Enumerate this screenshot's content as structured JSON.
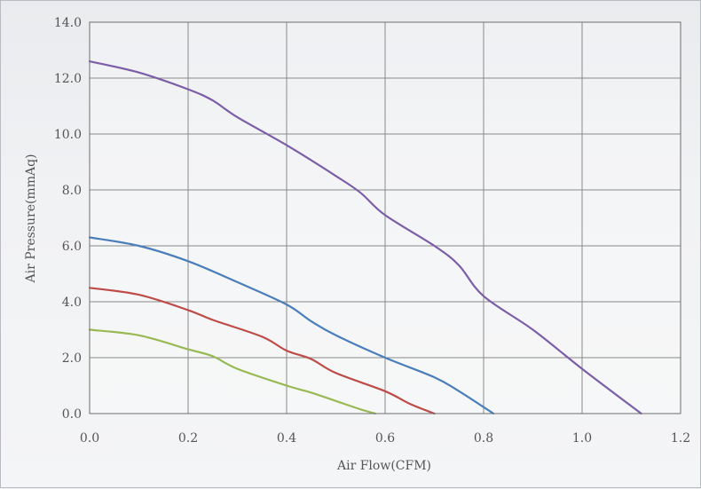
{
  "chart_data": {
    "type": "line",
    "title": "",
    "xlabel": "Air Flow(CFM)",
    "ylabel": "Air Pressure(mmAq)",
    "xlim": [
      0.0,
      1.2
    ],
    "ylim": [
      0.0,
      14.0
    ],
    "x_ticks": [
      "0.0",
      "0.2",
      "0.4",
      "0.6",
      "0.8",
      "1.0",
      "1.2"
    ],
    "y_ticks": [
      "0.0",
      "2.0",
      "4.0",
      "6.0",
      "8.0",
      "10.0",
      "12.0",
      "14.0"
    ],
    "grid": true,
    "legend": "none",
    "series": [
      {
        "color": "#7b5ea7",
        "points": [
          [
            0.0,
            12.6
          ],
          [
            0.1,
            12.2
          ],
          [
            0.2,
            11.6
          ],
          [
            0.25,
            11.2
          ],
          [
            0.3,
            10.6
          ],
          [
            0.4,
            9.6
          ],
          [
            0.5,
            8.5
          ],
          [
            0.55,
            7.9
          ],
          [
            0.6,
            7.1
          ],
          [
            0.7,
            6.0
          ],
          [
            0.75,
            5.3
          ],
          [
            0.8,
            4.2
          ],
          [
            0.9,
            3.0
          ],
          [
            1.0,
            1.6
          ],
          [
            1.12,
            0.0
          ]
        ]
      },
      {
        "color": "#4a7ebb",
        "points": [
          [
            0.0,
            6.3
          ],
          [
            0.1,
            6.0
          ],
          [
            0.2,
            5.45
          ],
          [
            0.3,
            4.7
          ],
          [
            0.4,
            3.9
          ],
          [
            0.45,
            3.3
          ],
          [
            0.5,
            2.8
          ],
          [
            0.6,
            2.0
          ],
          [
            0.7,
            1.3
          ],
          [
            0.75,
            0.8
          ],
          [
            0.82,
            0.0
          ]
        ]
      },
      {
        "color": "#be4b48",
        "points": [
          [
            0.0,
            4.5
          ],
          [
            0.1,
            4.25
          ],
          [
            0.2,
            3.7
          ],
          [
            0.25,
            3.35
          ],
          [
            0.35,
            2.75
          ],
          [
            0.4,
            2.25
          ],
          [
            0.45,
            1.95
          ],
          [
            0.5,
            1.45
          ],
          [
            0.6,
            0.8
          ],
          [
            0.65,
            0.35
          ],
          [
            0.7,
            0.0
          ]
        ]
      },
      {
        "color": "#98b954",
        "points": [
          [
            0.0,
            3.0
          ],
          [
            0.1,
            2.8
          ],
          [
            0.2,
            2.3
          ],
          [
            0.25,
            2.05
          ],
          [
            0.3,
            1.6
          ],
          [
            0.4,
            1.0
          ],
          [
            0.45,
            0.75
          ],
          [
            0.5,
            0.45
          ],
          [
            0.55,
            0.15
          ],
          [
            0.58,
            0.0
          ]
        ]
      }
    ]
  }
}
